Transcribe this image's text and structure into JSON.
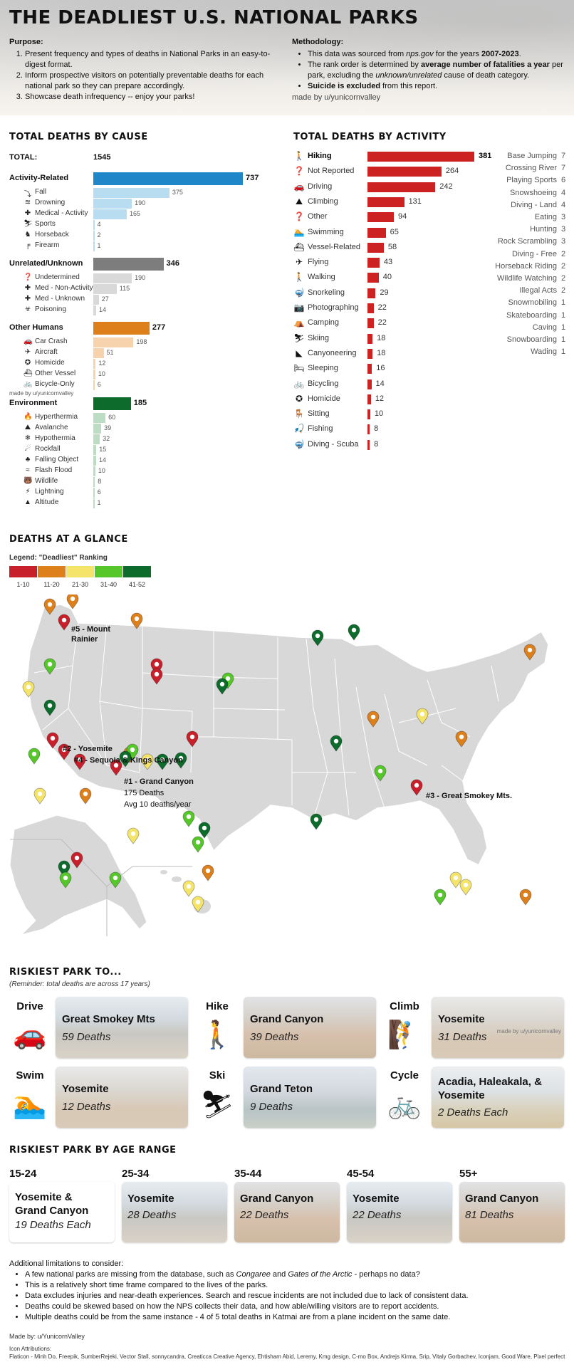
{
  "header": {
    "title": "THE DEADLIEST U.S. NATIONAL PARKS",
    "purpose_heading": "Purpose",
    "purpose_items": [
      "Present frequency and types of deaths in National Parks in an easy-to-digest format.",
      "Inform prospective visitors on potentially preventable deaths for each national park so they can prepare accordingly.",
      "Showcase death infrequency -- enjoy your parks!"
    ],
    "methodology_heading": "Methodology",
    "methodology_items": {
      "m1_pre": "This data was sourced from ",
      "m1_src": "nps.gov",
      "m1_mid": " for the years ",
      "m1_years": "2007-2023",
      "m1_end": ".",
      "m2_pre": "The rank order is determined by ",
      "m2_bold": "average number of fatalities a year",
      "m2_mid": " per park, excluding the ",
      "m2_ital": "unknown/unrelated",
      "m2_end": " cause of death category.",
      "m3_bold": "Suicide is excluded",
      "m3_end": " from this report."
    },
    "credit": "made by u/yunicornvalley"
  },
  "cause_section": {
    "title": "TOTAL DEATHS BY CAUSE",
    "total_label": "TOTAL:",
    "total_value": "1545",
    "credit": "made by u/yunicornvalley"
  },
  "activity_section": {
    "title": "TOTAL DEATHS BY ACTIVITY"
  },
  "chart_data": [
    {
      "type": "bar",
      "title": "TOTAL DEATHS BY CAUSE",
      "groups": [
        {
          "name": "Activity-Related",
          "value": 737,
          "color": "#1f86c8",
          "light": "#b8dcf0",
          "items": [
            {
              "name": "Fall",
              "value": 375,
              "icon": "fall-icon",
              "glyph": "⤵"
            },
            {
              "name": "Drowning",
              "value": 190,
              "icon": "drowning-icon",
              "glyph": "≋"
            },
            {
              "name": "Medical - Activity",
              "value": 165,
              "icon": "medical-icon",
              "glyph": "✚"
            },
            {
              "name": "Sports",
              "value": 4,
              "icon": "sports-icon",
              "glyph": "⛷"
            },
            {
              "name": "Horseback",
              "value": 2,
              "icon": "horse-icon",
              "glyph": "♞"
            },
            {
              "name": "Firearm",
              "value": 1,
              "icon": "firearm-icon",
              "glyph": "╒"
            }
          ]
        },
        {
          "name": "Unrelated/Unknown",
          "value": 346,
          "color": "#7d7d7d",
          "light": "#d9d9d9",
          "items": [
            {
              "name": "Undetermined",
              "value": 190,
              "icon": "question-icon",
              "glyph": "❓"
            },
            {
              "name": "Med - Non-Activity",
              "value": 115,
              "icon": "medical-icon",
              "glyph": "✚"
            },
            {
              "name": "Med - Unknown",
              "value": 27,
              "icon": "medical-icon",
              "glyph": "✚"
            },
            {
              "name": "Poisoning",
              "value": 14,
              "icon": "poison-icon",
              "glyph": "☣"
            }
          ]
        },
        {
          "name": "Other Humans",
          "value": 277,
          "color": "#dd7f1a",
          "light": "#f6d3ac",
          "items": [
            {
              "name": "Car Crash",
              "value": 198,
              "icon": "car-icon",
              "glyph": "🚗"
            },
            {
              "name": "Aircraft",
              "value": 51,
              "icon": "plane-icon",
              "glyph": "✈"
            },
            {
              "name": "Homicide",
              "value": 12,
              "icon": "homicide-icon",
              "glyph": "✪"
            },
            {
              "name": "Other Vessel",
              "value": 10,
              "icon": "boat-icon",
              "glyph": "⛴"
            },
            {
              "name": "Bicycle-Only",
              "value": 6,
              "icon": "bicycle-icon",
              "glyph": "🚲"
            }
          ]
        },
        {
          "name": "Environment",
          "value": 185,
          "color": "#0d6b2c",
          "light": "#bcdcc4",
          "items": [
            {
              "name": "Hyperthermia",
              "value": 60,
              "icon": "flame-icon",
              "glyph": "🔥"
            },
            {
              "name": "Avalanche",
              "value": 39,
              "icon": "avalanche-icon",
              "glyph": "⛰"
            },
            {
              "name": "Hypothermia",
              "value": 32,
              "icon": "snowflake-icon",
              "glyph": "❄"
            },
            {
              "name": "Rockfall",
              "value": 15,
              "icon": "rockfall-icon",
              "glyph": "☄"
            },
            {
              "name": "Falling Object",
              "value": 14,
              "icon": "tree-icon",
              "glyph": "♣"
            },
            {
              "name": "Flash Flood",
              "value": 10,
              "icon": "flood-icon",
              "glyph": "≈"
            },
            {
              "name": "Wildlife",
              "value": 8,
              "icon": "bear-icon",
              "glyph": "🐻"
            },
            {
              "name": "Lightning",
              "value": 6,
              "icon": "lightning-icon",
              "glyph": "⚡"
            },
            {
              "name": "Altitude",
              "value": 1,
              "icon": "mountain-icon",
              "glyph": "▲"
            }
          ]
        }
      ]
    },
    {
      "type": "bar",
      "title": "TOTAL DEATHS BY ACTIVITY",
      "color": "#cc2222",
      "items": [
        {
          "name": "Hiking",
          "value": 381,
          "icon": "hiker-icon",
          "glyph": "🚶"
        },
        {
          "name": "Not Reported",
          "value": 264,
          "icon": "question-icon",
          "glyph": "❓"
        },
        {
          "name": "Driving",
          "value": 242,
          "icon": "car-icon",
          "glyph": "🚗"
        },
        {
          "name": "Climbing",
          "value": 131,
          "icon": "climb-icon",
          "glyph": "⛰"
        },
        {
          "name": "Other",
          "value": 94,
          "icon": "question-icon",
          "glyph": "❓"
        },
        {
          "name": "Swimming",
          "value": 65,
          "icon": "swim-icon",
          "glyph": "🏊"
        },
        {
          "name": "Vessel-Related",
          "value": 58,
          "icon": "boat-icon",
          "glyph": "⛴"
        },
        {
          "name": "Flying",
          "value": 43,
          "icon": "plane-icon",
          "glyph": "✈"
        },
        {
          "name": "Walking",
          "value": 40,
          "icon": "walk-icon",
          "glyph": "🚶"
        },
        {
          "name": "Snorkeling",
          "value": 29,
          "icon": "snorkel-icon",
          "glyph": "🤿"
        },
        {
          "name": "Photographing",
          "value": 22,
          "icon": "camera-icon",
          "glyph": "📷"
        },
        {
          "name": "Camping",
          "value": 22,
          "icon": "tent-icon",
          "glyph": "⛺"
        },
        {
          "name": "Skiing",
          "value": 18,
          "icon": "ski-icon",
          "glyph": "⛷"
        },
        {
          "name": "Canyoneering",
          "value": 18,
          "icon": "canyon-icon",
          "glyph": "◣"
        },
        {
          "name": "Sleeping",
          "value": 16,
          "icon": "bed-icon",
          "glyph": "🛏"
        },
        {
          "name": "Bicycling",
          "value": 14,
          "icon": "bicycle-icon",
          "glyph": "🚲"
        },
        {
          "name": "Homicide",
          "value": 12,
          "icon": "homicide-icon",
          "glyph": "✪"
        },
        {
          "name": "Sitting",
          "value": 10,
          "icon": "sitting-icon",
          "glyph": "🪑"
        },
        {
          "name": "Fishing",
          "value": 8,
          "icon": "fishing-icon",
          "glyph": "🎣"
        },
        {
          "name": "Diving - Scuba",
          "value": 8,
          "icon": "scuba-icon",
          "glyph": "🤿"
        }
      ],
      "other_items": [
        {
          "name": "Base Jumping",
          "value": 7
        },
        {
          "name": "Crossing River",
          "value": 7
        },
        {
          "name": "Playing Sports",
          "value": 6
        },
        {
          "name": "Snowshoeing",
          "value": 4
        },
        {
          "name": "Diving - Land",
          "value": 4
        },
        {
          "name": "Eating",
          "value": 3
        },
        {
          "name": "Hunting",
          "value": 3
        },
        {
          "name": "Rock Scrambling",
          "value": 3
        },
        {
          "name": "Diving - Free",
          "value": 2
        },
        {
          "name": "Horseback Riding",
          "value": 2
        },
        {
          "name": "Wildlife Watching",
          "value": 2
        },
        {
          "name": "Illegal Acts",
          "value": 2
        },
        {
          "name": "Snowmobiling",
          "value": 1
        },
        {
          "name": "Skateboarding",
          "value": 1
        },
        {
          "name": "Caving",
          "value": 1
        },
        {
          "name": "Snowboarding",
          "value": 1
        },
        {
          "name": "Wading",
          "value": 1
        }
      ]
    }
  ],
  "glance": {
    "title": "DEATHS AT A GLANCE",
    "legend_title": "Legend: \"Deadliest\" Ranking",
    "legend": [
      {
        "label": "1-10",
        "color": "#c8202a"
      },
      {
        "label": "11-20",
        "color": "#dd7f1a"
      },
      {
        "label": "21-30",
        "color": "#f4e46a"
      },
      {
        "label": "31-40",
        "color": "#55c72a"
      },
      {
        "label": "41-52",
        "color": "#0d6b2c"
      }
    ],
    "callouts": {
      "rainier_1": "#5 - Mount",
      "rainier_2": "Rainier",
      "yosemite": "#2 - Yosemite",
      "sequoia": "#4 - Sequoia & Kings Canyon",
      "grand_canyon": "#1 - Grand Canyon",
      "gc_deaths": "175 Deaths",
      "gc_avg": "Avg 10 deaths/year",
      "smokey": "#3 - Great Smokey Mts."
    }
  },
  "riskiest": {
    "title": "RISKIEST PARK TO...",
    "note": "(Reminder: total deaths are across 17 years)",
    "watermark": "made by u/yunicornvalley",
    "cards": [
      {
        "activity": "Drive",
        "icon": "car-crash-icon",
        "glyph": "🚗",
        "park": "Great Smokey Mts",
        "deaths": "59 Deaths"
      },
      {
        "activity": "Hike",
        "icon": "hiker-icon",
        "glyph": "🚶",
        "park": "Grand Canyon",
        "deaths": "39 Deaths"
      },
      {
        "activity": "Climb",
        "icon": "climber-icon",
        "glyph": "🧗",
        "park": "Yosemite",
        "deaths": "31 Deaths"
      },
      {
        "activity": "Swim",
        "icon": "swimmer-icon",
        "glyph": "🏊",
        "park": "Yosemite",
        "deaths": "12 Deaths"
      },
      {
        "activity": "Ski",
        "icon": "skier-icon",
        "glyph": "⛷",
        "park": "Grand Teton",
        "deaths": "9 Deaths"
      },
      {
        "activity": "Cycle",
        "icon": "cyclist-icon",
        "glyph": "🚲",
        "park": "Acadia, Haleakala, & Yosemite",
        "deaths": "2 Deaths Each"
      }
    ]
  },
  "age": {
    "title": "RISKIEST PARK BY AGE RANGE",
    "ranges": [
      {
        "range": "15-24",
        "park": "Yosemite & Grand Canyon",
        "deaths": "19 Deaths Each"
      },
      {
        "range": "25-34",
        "park": "Yosemite",
        "deaths": "28 Deaths"
      },
      {
        "range": "35-44",
        "park": "Grand Canyon",
        "deaths": "22 Deaths"
      },
      {
        "range": "45-54",
        "park": "Yosemite",
        "deaths": "22 Deaths"
      },
      {
        "range": "55+",
        "park": "Grand Canyon",
        "deaths": "81 Deaths"
      }
    ]
  },
  "footer": {
    "limits_heading": "Additional limitations to consider:",
    "l1_pre": "A few national parks are missing from the database, such as ",
    "l1_a": "Congaree",
    "l1_mid": " and ",
    "l1_b": "Gates of the Arctic",
    "l1_end": " - perhaps no data?",
    "l2": "This is a relatively short time frame compared to the lives of the parks.",
    "l3": "Data excludes injuries and near-death experiences. Search and rescue incidents are not included due to lack of consistent data.",
    "l4": "Deaths could be skewed based on how the NPS collects their data, and how able/willing visitors are to report accidents.",
    "l5": "Multiple deaths could be from the same instance - 4 of 5 total deaths in Katmai are from a plane incident on the same date.",
    "made_by": "Made by: u/YunicornValley",
    "attr_heading": "Icon Attributions:",
    "attr": "Flaticon - Minh Do, Freepik, SumberRejeki, Vector Stall, sonnycandra, Creaticca Creative Agency, Ehtisham Abid, Leremy, Kmg design, C-mo Box, Andrejs Kirma, Srip, Vitaly Gorbachev, Iconjam, Good Ware, Pixel perfect"
  }
}
